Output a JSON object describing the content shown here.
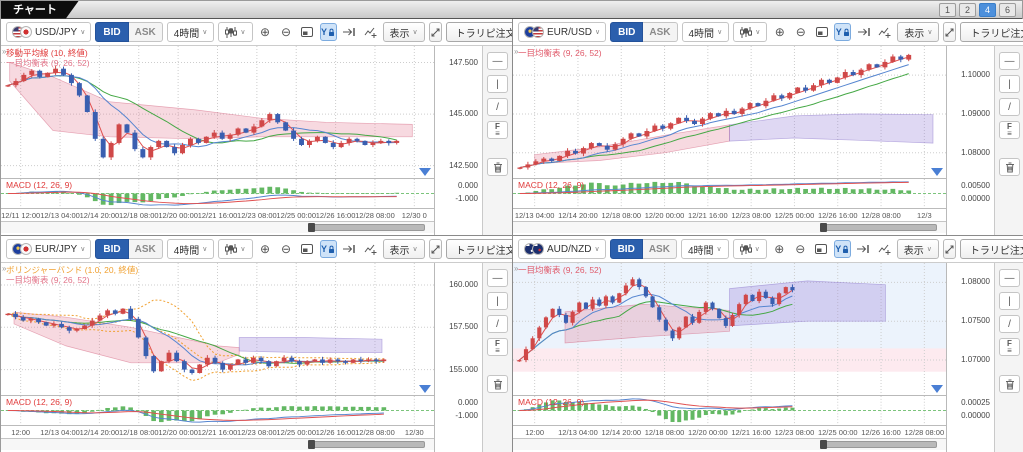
{
  "app": {
    "tab_label": "チャート",
    "layout_buttons": [
      "1",
      "2",
      "4",
      "6"
    ],
    "active_layout": "4",
    "accent_color": "#4d90dc"
  },
  "charts": [
    {
      "pair": "USD/JPY",
      "flags": [
        "us",
        "jp"
      ],
      "bid_label": "BID",
      "ask_label": "ASK",
      "timeframe": "4時間",
      "display_label": "表示",
      "order_button_label": "トラリピ注文",
      "indicator_labels": [
        {
          "text": "移動平均線 (10, 終値)",
          "color": "#e03a3a"
        },
        {
          "text": "一目均衡表 (9, 26, 52)",
          "color": "#e27489"
        }
      ],
      "macd_label": "MACD (12, 26, 9)",
      "y_ticks": [
        147.5,
        145.0,
        142.5
      ],
      "y_tick_labels": [
        "147.500",
        "145.000",
        "142.500"
      ],
      "macd_tick_labels": [
        "0.000",
        "-1.000"
      ],
      "x_labels": [
        "12/11 12:00",
        "12/13 04:00",
        "12/14 20:00",
        "12/18 08:00",
        "12/20 00:00",
        "12/21 16:00",
        "12/23 08:00",
        "12/25 00:00",
        "12/26 16:00",
        "12/28 08:00",
        "12/30 0"
      ],
      "chart_data": {
        "type": "candlestick",
        "ylim": [
          141.9,
          148.3
        ],
        "candle_span": 0.93,
        "closes": [
          146.4,
          146.6,
          146.9,
          147.1,
          146.8,
          147.0,
          147.2,
          146.9,
          146.5,
          145.9,
          145.1,
          143.8,
          142.9,
          143.6,
          144.5,
          144.1,
          143.3,
          142.9,
          143.4,
          143.7,
          143.4,
          143.1,
          143.5,
          143.8,
          143.6,
          143.9,
          144.1,
          143.8,
          144.0,
          144.3,
          144.1,
          144.4,
          144.7,
          145.0,
          144.6,
          144.2,
          143.8,
          143.5,
          143.7,
          143.9,
          143.6,
          143.4,
          143.6,
          143.8,
          143.7,
          143.5,
          143.6,
          143.7,
          143.6,
          143.7
        ],
        "cloud": [
          {
            "color": "pink",
            "points": [
              [
                0.02,
                147.5,
                146.6
              ],
              [
                0.12,
                146.8,
                144.2
              ],
              [
                0.25,
                145.6,
                143.9
              ],
              [
                0.45,
                145.2,
                143.8
              ],
              [
                0.6,
                144.8,
                143.9
              ],
              [
                0.75,
                144.6,
                143.9
              ],
              [
                0.95,
                144.5,
                143.9
              ]
            ]
          }
        ],
        "bands": [],
        "bollinger": false
      }
    },
    {
      "pair": "EUR/USD",
      "flags": [
        "eu",
        "us"
      ],
      "bid_label": "BID",
      "ask_label": "ASK",
      "timeframe": "4時間",
      "display_label": "表示",
      "order_button_label": "トラリピ注文",
      "indicator_labels": [
        {
          "text": "一目均衡表 (9, 26, 52)",
          "color": "#e05a6a"
        }
      ],
      "macd_label": "MACD (12, 26, 9)",
      "y_ticks": [
        1.1,
        1.09,
        1.08
      ],
      "y_tick_labels": [
        "1.10000",
        "1.09000",
        "1.08000"
      ],
      "macd_tick_labels": [
        "0.00500",
        "0.00000"
      ],
      "x_labels": [
        "12/13 04:00",
        "12/14 20:00",
        "12/18 08:00",
        "12/20 00:00",
        "12/21 16:00",
        "12/23 08:00",
        "12/25 00:00",
        "12/26 16:00",
        "12/28 08:00",
        "12/3"
      ],
      "chart_data": {
        "type": "candlestick",
        "ylim": [
          1.0735,
          1.1075
        ],
        "candle_span": 0.93,
        "closes": [
          1.0762,
          1.077,
          1.0778,
          1.0785,
          1.0779,
          1.0792,
          1.0805,
          1.0798,
          1.0812,
          1.0825,
          1.0818,
          1.0808,
          1.0822,
          1.0836,
          1.085,
          1.0842,
          1.0856,
          1.087,
          1.0862,
          1.0876,
          1.089,
          1.0882,
          1.0874,
          1.0888,
          1.0902,
          1.0894,
          1.0908,
          1.09,
          1.0914,
          1.0928,
          1.092,
          1.0934,
          1.0948,
          1.094,
          1.0954,
          1.0968,
          1.096,
          1.0974,
          1.0988,
          1.098,
          1.0994,
          1.1008,
          1.1,
          1.1014,
          1.1028,
          1.102,
          1.1034,
          1.1048,
          1.104,
          1.1052
        ],
        "cloud": [
          {
            "color": "pink",
            "points": [
              [
                0.05,
                1.0795,
                1.0772
              ],
              [
                0.2,
                1.0815,
                1.078
              ],
              [
                0.35,
                1.0845,
                1.08
              ],
              [
                0.5,
                1.0872,
                1.083
              ]
            ]
          },
          {
            "color": "purple",
            "points": [
              [
                0.5,
                1.0872,
                1.083
              ],
              [
                0.65,
                1.0895,
                1.0838
              ],
              [
                0.8,
                1.09,
                1.0832
              ],
              [
                0.97,
                1.0898,
                1.0825
              ]
            ]
          }
        ],
        "bands": [],
        "bollinger": false
      }
    },
    {
      "pair": "EUR/JPY",
      "flags": [
        "eu",
        "jp"
      ],
      "bid_label": "BID",
      "ask_label": "ASK",
      "timeframe": "4時間",
      "display_label": "表示",
      "order_button_label": "トラリピ注文",
      "indicator_labels": [
        {
          "text": "ボリンジャーバンド (1.0, 20, 終値)",
          "color": "#f0a030"
        },
        {
          "text": "一目均衡表 (9, 26, 52)",
          "color": "#e27489"
        }
      ],
      "macd_label": "MACD (12, 26, 9)",
      "y_ticks": [
        160.0,
        157.5,
        155.0
      ],
      "y_tick_labels": [
        "160.000",
        "157.500",
        "155.000"
      ],
      "macd_tick_labels": [
        "0.000",
        "-1.000"
      ],
      "x_labels": [
        "12:00",
        "12/13 04:00",
        "12/14 20:00",
        "12/18 08:00",
        "12/20 00:00",
        "12/21 16:00",
        "12/23 08:00",
        "12/25 00:00",
        "12/26 16:00",
        "12/28 08:00",
        "12/30"
      ],
      "chart_data": {
        "type": "candlestick",
        "ylim": [
          153.5,
          161.3
        ],
        "candle_span": 0.9,
        "closes": [
          158.3,
          158.1,
          157.9,
          158.0,
          157.8,
          157.6,
          157.7,
          157.5,
          157.3,
          157.4,
          157.6,
          157.9,
          158.2,
          158.5,
          158.3,
          158.6,
          158.0,
          156.9,
          155.8,
          154.9,
          155.5,
          156.0,
          155.5,
          155.0,
          154.8,
          155.3,
          155.7,
          155.4,
          155.0,
          155.3,
          155.6,
          155.4,
          155.7,
          155.5,
          155.2,
          155.5,
          155.7,
          155.5,
          155.3,
          155.5,
          155.6,
          155.4,
          155.6,
          155.5,
          155.4,
          155.6,
          155.5,
          155.6,
          155.5,
          155.6
        ],
        "cloud": [
          {
            "color": "pink",
            "points": [
              [
                0.03,
                158.4,
                157.7
              ],
              [
                0.15,
                158.1,
                156.4
              ],
              [
                0.3,
                157.5,
                155.4
              ],
              [
                0.5,
                156.4,
                155.4
              ],
              [
                0.55,
                156.3,
                155.9
              ]
            ]
          },
          {
            "color": "purple",
            "points": [
              [
                0.55,
                156.9,
                156.1
              ],
              [
                0.7,
                156.9,
                156.0
              ],
              [
                0.88,
                156.8,
                156.0
              ]
            ]
          }
        ],
        "bands": [],
        "bollinger": true
      }
    },
    {
      "pair": "AUD/NZD",
      "flags": [
        "au",
        "nz"
      ],
      "bid_label": "BID",
      "ask_label": "ASK",
      "timeframe": "4時間",
      "display_label": "表示",
      "order_button_label": "トラリピ注文",
      "indicator_labels": [
        {
          "text": "一目均衡表 (9, 26, 52)",
          "color": "#e05a6a"
        }
      ],
      "macd_label": "MACD (12, 26, 9)",
      "y_ticks": [
        1.08,
        1.075,
        1.07
      ],
      "y_tick_labels": [
        "1.08000",
        "1.07500",
        "1.07000"
      ],
      "macd_tick_labels": [
        "0.00025",
        "0.00000"
      ],
      "x_labels": [
        "12:00",
        "12/13 04:00",
        "12/14 20:00",
        "12/18 08:00",
        "12/20 00:00",
        "12/21 16:00",
        "12/23 08:00",
        "12/25 00:00",
        "12/26 16:00",
        "12/28 08:00"
      ],
      "chart_data": {
        "type": "candlestick",
        "ylim": [
          1.0655,
          1.0825
        ],
        "candle_span": 0.66,
        "closes": [
          1.07,
          1.0714,
          1.0728,
          1.0742,
          1.0755,
          1.0766,
          1.0758,
          1.0748,
          1.0762,
          1.0774,
          1.0766,
          1.0778,
          1.077,
          1.0782,
          1.0774,
          1.0786,
          1.0796,
          1.0804,
          1.0794,
          1.0782,
          1.0768,
          1.0752,
          1.0738,
          1.0728,
          1.0742,
          1.0756,
          1.0748,
          1.0762,
          1.0774,
          1.0766,
          1.0754,
          1.0744,
          1.0758,
          1.0772,
          1.0784,
          1.0776,
          1.0788,
          1.078,
          1.0772,
          1.0786,
          1.0794,
          1.079
        ],
        "cloud": [
          {
            "color": "pink",
            "points": [
              [
                0.12,
                1.0762,
                1.0722
              ],
              [
                0.3,
                1.0772,
                1.073
              ],
              [
                0.5,
                1.0764,
                1.0737
              ]
            ]
          },
          {
            "color": "purple",
            "points": [
              [
                0.5,
                1.0792,
                1.0744
              ],
              [
                0.68,
                1.0802,
                1.075
              ],
              [
                0.86,
                1.0797,
                1.075
              ]
            ]
          }
        ],
        "bands": [
          {
            "top": 1.0825,
            "bottom": 1.0715,
            "color": "rgba(150,190,240,0.18)"
          },
          {
            "top": 1.0715,
            "bottom": 1.0685,
            "color": "rgba(245,160,180,0.22)"
          }
        ],
        "bollinger": false
      }
    }
  ]
}
